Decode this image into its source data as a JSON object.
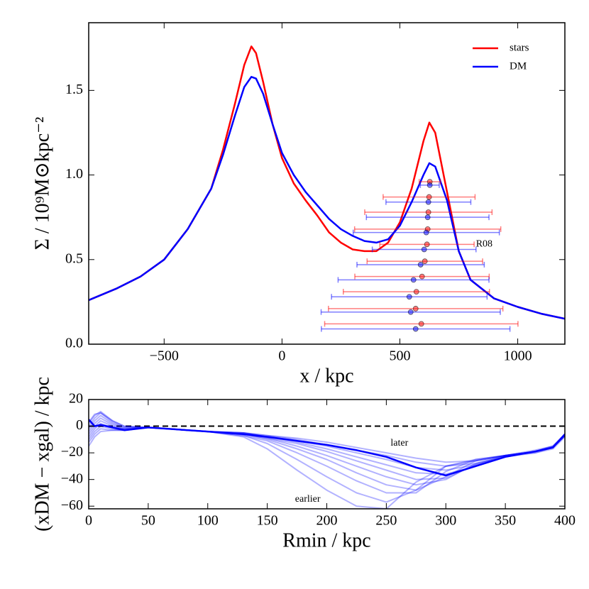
{
  "chart_data": [
    {
      "type": "line",
      "xlabel": "x / kpc",
      "ylabel": "Σ / 10⁹M⊙kpc⁻²",
      "xlim": [
        -820,
        1200
      ],
      "ylim": [
        0,
        1.9
      ],
      "xticks": [
        {
          "value": -500,
          "label": "−500"
        },
        0,
        500,
        1000
      ],
      "yticks": [
        {
          "value": 0,
          "label": "0.0"
        },
        0.5,
        {
          "value": 1,
          "label": "1.0"
        },
        1.5
      ],
      "legend": "upper right",
      "x": [
        -820,
        -700,
        -600,
        -500,
        -400,
        -300,
        -250,
        -200,
        -160,
        -130,
        -110,
        -80,
        -40,
        0,
        50,
        100,
        150,
        200,
        250,
        300,
        350,
        400,
        450,
        500,
        550,
        600,
        625,
        650,
        700,
        750,
        800,
        900,
        1000,
        1100,
        1200
      ],
      "series": [
        {
          "name": "stars",
          "color": "#ff0000",
          "values": [
            0.26,
            0.33,
            0.4,
            0.5,
            0.68,
            0.92,
            1.15,
            1.42,
            1.65,
            1.76,
            1.72,
            1.55,
            1.3,
            1.1,
            0.95,
            0.85,
            0.76,
            0.66,
            0.6,
            0.56,
            0.55,
            0.55,
            0.6,
            0.72,
            0.92,
            1.2,
            1.31,
            1.25,
            0.9,
            0.55,
            0.38,
            0.27,
            0.22,
            0.18,
            0.15
          ]
        },
        {
          "name": "DM",
          "color": "#0000ff",
          "values": [
            0.26,
            0.33,
            0.4,
            0.5,
            0.68,
            0.92,
            1.12,
            1.35,
            1.52,
            1.58,
            1.57,
            1.48,
            1.3,
            1.13,
            1.0,
            0.9,
            0.82,
            0.74,
            0.68,
            0.64,
            0.61,
            0.6,
            0.62,
            0.7,
            0.84,
            1.0,
            1.07,
            1.05,
            0.85,
            0.55,
            0.38,
            0.27,
            0.22,
            0.18,
            0.15
          ]
        }
      ],
      "errorbars": [
        {
          "color": "#ff0000",
          "alpha": 0.5,
          "x": [
            627,
            624,
            621,
            618,
            615,
            606,
            594,
            570,
            567,
            591
          ],
          "y": [
            0.96,
            0.87,
            0.78,
            0.68,
            0.59,
            0.49,
            0.4,
            0.31,
            0.21,
            0.12
          ],
          "xerr": [
            45,
            195,
            270,
            310,
            200,
            245,
            285,
            310,
            370,
            410
          ]
        },
        {
          "color": "#0000ff",
          "alpha": 0.5,
          "x": [
            627,
            621,
            618,
            612,
            603,
            588,
            558,
            540,
            546,
            567
          ],
          "y": [
            0.94,
            0.84,
            0.75,
            0.66,
            0.56,
            0.47,
            0.38,
            0.28,
            0.19,
            0.09
          ],
          "xerr": [
            40,
            180,
            260,
            310,
            220,
            270,
            320,
            330,
            380,
            400
          ]
        }
      ],
      "annotations": [
        {
          "text": "R08",
          "x": 858,
          "y": 0.59
        }
      ]
    },
    {
      "type": "line",
      "xlabel": "Rmin / kpc",
      "ylabel": "(xDM − xgal) / kpc",
      "xlim": [
        0,
        400
      ],
      "ylim": [
        -62,
        20
      ],
      "xticks": [
        0,
        50,
        100,
        150,
        200,
        250,
        300,
        350,
        400
      ],
      "yticks": [
        20,
        0,
        {
          "value": -20,
          "label": "−20"
        },
        {
          "value": -40,
          "label": "−40"
        },
        {
          "value": -60,
          "label": "−60"
        }
      ],
      "reference_line": {
        "y": 0,
        "color": "#000000",
        "style": "dashed"
      },
      "x": [
        0,
        5,
        10,
        20,
        30,
        50,
        100,
        130,
        150,
        175,
        200,
        225,
        250,
        275,
        300,
        325,
        350,
        375,
        390,
        400
      ],
      "series": [
        {
          "color": "#0000ff",
          "alpha": 0.3,
          "values": [
            -15,
            -8,
            -4,
            -3,
            -3,
            -1,
            -4,
            -8,
            -17,
            -33,
            -48,
            -60,
            -62,
            -42,
            -30,
            -26,
            -22,
            -20,
            -17,
            -8
          ]
        },
        {
          "color": "#0000ff",
          "alpha": 0.3,
          "values": [
            -12,
            -6,
            -2,
            -3,
            -3,
            -1,
            -4,
            -7,
            -13,
            -25,
            -38,
            -50,
            -57,
            -48,
            -30,
            -25,
            -22,
            -19,
            -16,
            -7
          ]
        },
        {
          "color": "#0000ff",
          "alpha": 0.3,
          "values": [
            -10,
            -4,
            0,
            -2,
            -3,
            -1,
            -4,
            -7,
            -11,
            -20,
            -30,
            -41,
            -50,
            -50,
            -34,
            -25,
            -22,
            -19,
            -16,
            -7
          ]
        },
        {
          "color": "#0000ff",
          "alpha": 0.3,
          "values": [
            -8,
            -2,
            2,
            -1,
            -2,
            -1,
            -4,
            -6,
            -10,
            -17,
            -25,
            -35,
            -44,
            -48,
            -38,
            -26,
            -22,
            -19,
            -16,
            -7
          ]
        },
        {
          "color": "#0000ff",
          "alpha": 0.3,
          "values": [
            -6,
            0,
            4,
            0,
            -2,
            -1,
            -4,
            -6,
            -9,
            -15,
            -22,
            -30,
            -38,
            -44,
            -40,
            -28,
            -22,
            -19,
            -16,
            -7
          ]
        },
        {
          "color": "#0000ff",
          "alpha": 0.3,
          "values": [
            -4,
            2,
            6,
            1,
            -2,
            -1,
            -4,
            -6,
            -9,
            -13,
            -19,
            -26,
            -33,
            -40,
            -39,
            -29,
            -22,
            -19,
            -16,
            -7
          ]
        },
        {
          "color": "#0000ff",
          "alpha": 0.3,
          "values": [
            -2,
            4,
            8,
            2,
            -1,
            -1,
            -4,
            -5,
            -8,
            -12,
            -17,
            -23,
            -29,
            -35,
            -36,
            -30,
            -23,
            -20,
            -16,
            -7
          ]
        },
        {
          "color": "#0000ff",
          "alpha": 0.3,
          "values": [
            0,
            6,
            10,
            3,
            -1,
            -1,
            -4,
            -5,
            -8,
            -11,
            -15,
            -20,
            -25,
            -31,
            -33,
            -29,
            -23,
            -19,
            -15,
            -7
          ]
        },
        {
          "color": "#0000ff",
          "alpha": 0.3,
          "values": [
            2,
            8,
            11,
            4,
            0,
            -1,
            -4,
            -5,
            -7,
            -10,
            -14,
            -18,
            -22,
            -27,
            -30,
            -28,
            -23,
            -19,
            -15,
            -6
          ]
        },
        {
          "color": "#0000ff",
          "alpha": 0.3,
          "values": [
            3,
            9,
            10,
            4,
            0,
            -1,
            -4,
            -5,
            -7,
            -9,
            -12,
            -16,
            -20,
            -24,
            -27,
            -26,
            -22,
            -18,
            -15,
            -6
          ]
        },
        {
          "color": "#0000ff",
          "alpha": 1,
          "values": [
            5,
            0,
            1,
            -1,
            -3,
            -1,
            -4,
            -6,
            -8,
            -11,
            -14,
            -18,
            -23,
            -31,
            -37,
            -30,
            -23,
            -19,
            -16,
            -6
          ]
        }
      ],
      "annotations": [
        {
          "text": "later",
          "x": 261,
          "y": -13
        },
        {
          "text": "earlier",
          "x": 184,
          "y": -55
        }
      ]
    }
  ]
}
